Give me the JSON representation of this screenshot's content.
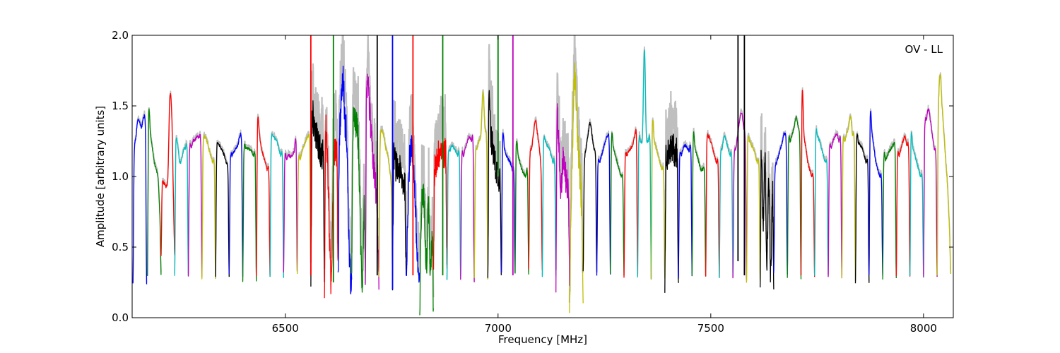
{
  "chart_data": {
    "type": "line",
    "title": "",
    "annotation": "OV - LL",
    "xlabel": "Frequency [MHz]",
    "ylabel": "Amplitude [arbitrary units]",
    "xlim": [
      6140,
      8070
    ],
    "ylim": [
      0,
      2.0
    ],
    "xticks": [
      6500,
      7000,
      7500,
      8000
    ],
    "xtick_labels": [
      "6500",
      "7000",
      "7500",
      "8000"
    ],
    "yticks": [
      0.0,
      0.5,
      1.0,
      1.5,
      2.0
    ],
    "ytick_labels": [
      "0.0",
      "0.5",
      "1.0",
      "1.5",
      "2.0"
    ],
    "grid": false,
    "background_trace_color": "#bfbfbf",
    "color_cycle": [
      "#0000ff",
      "#008000",
      "#ff0000",
      "#00bfbf",
      "#bf00bf",
      "#bfbf00",
      "#000000"
    ],
    "channel_width_mhz": 32,
    "series": [
      {
        "start": 6142,
        "color": "#0000ff",
        "values": [
          0.24,
          1.12,
          1.28,
          1.4,
          1.38,
          1.35,
          1.42,
          1.3,
          0.24
        ],
        "noisy": false
      },
      {
        "start": 6176,
        "color": "#008000",
        "values": [
          0.3,
          1.42,
          1.3,
          1.2,
          1.1,
          1.05,
          0.98,
          0.7,
          0.3
        ],
        "noisy": false
      },
      {
        "start": 6208,
        "color": "#ff0000",
        "values": [
          0.44,
          0.92,
          0.95,
          0.93,
          1.0,
          1.55,
          1.45,
          0.8,
          0.45
        ],
        "noisy": false
      },
      {
        "start": 6240,
        "color": "#00bfbf",
        "values": [
          0.3,
          1.2,
          1.22,
          1.1,
          1.12,
          1.18,
          1.2,
          1.15,
          0.3
        ],
        "noisy": false
      },
      {
        "start": 6272,
        "color": "#bf00bf",
        "values": [
          0.29,
          1.15,
          1.2,
          1.25,
          1.26,
          1.28,
          1.27,
          1.2,
          0.29
        ],
        "noisy": false
      },
      {
        "start": 6304,
        "color": "#bfbf00",
        "values": [
          0.28,
          1.18,
          1.28,
          1.25,
          1.2,
          1.15,
          1.1,
          1.05,
          0.28
        ],
        "noisy": false
      },
      {
        "start": 6336,
        "color": "#000000",
        "values": [
          0.29,
          1.15,
          1.23,
          1.2,
          1.18,
          1.15,
          1.1,
          1.0,
          0.29
        ],
        "noisy": false
      },
      {
        "start": 6368,
        "color": "#0000ff",
        "values": [
          0.3,
          1.08,
          1.15,
          1.18,
          1.2,
          1.22,
          1.28,
          1.2,
          0.3
        ],
        "noisy": false
      },
      {
        "start": 6400,
        "color": "#008000",
        "values": [
          0.26,
          1.15,
          1.2,
          1.2,
          1.19,
          1.18,
          1.15,
          1.1,
          0.26
        ],
        "noisy": false
      },
      {
        "start": 6432,
        "color": "#ff0000",
        "values": [
          0.3,
          1.35,
          1.3,
          1.2,
          1.15,
          1.1,
          1.05,
          1.0,
          0.3
        ],
        "noisy": false
      },
      {
        "start": 6464,
        "color": "#00bfbf",
        "values": [
          0.28,
          1.2,
          1.28,
          1.27,
          1.25,
          1.2,
          1.15,
          1.1,
          0.28
        ],
        "noisy": false
      },
      {
        "start": 6496,
        "color": "#bf00bf",
        "values": [
          0.32,
          1.1,
          1.12,
          1.15,
          1.14,
          1.15,
          1.18,
          1.2,
          0.32
        ],
        "noisy": false
      },
      {
        "start": 6528,
        "color": "#bfbf00",
        "values": [
          0.3,
          1.08,
          1.12,
          1.18,
          1.22,
          1.25,
          1.28,
          1.2,
          0.3
        ],
        "noisy": false
      },
      {
        "start": 6560,
        "color": "#000000",
        "values": [
          0.28,
          1.35,
          1.38,
          1.3,
          1.25,
          1.2,
          1.15,
          1.1,
          0.28
        ],
        "noisy": true
      },
      {
        "start": 6592,
        "color": "#ff0000",
        "values": [
          0.22,
          1.3,
          1.1,
          0.6,
          0.25,
          1.05,
          1.2,
          1.1,
          0.4
        ],
        "noisy": true
      },
      {
        "start": 6624,
        "color": "#0000ff",
        "values": [
          0.3,
          1.2,
          1.5,
          1.7,
          1.4,
          1.25,
          0.6,
          0.28,
          0.25
        ],
        "noisy": true
      },
      {
        "start": 6656,
        "color": "#008000",
        "values": [
          0.21,
          1.3,
          1.38,
          1.35,
          1.2,
          0.6,
          0.25,
          0.8,
          0.3
        ],
        "noisy": true
      },
      {
        "start": 6688,
        "color": "#bf00bf",
        "values": [
          0.23,
          1.45,
          1.6,
          1.4,
          1.2,
          1.05,
          0.9,
          0.6,
          0.23
        ],
        "noisy": true
      },
      {
        "start": 6720,
        "color": "#bfbf00",
        "values": [
          0.28,
          1.2,
          1.32,
          1.28,
          1.2,
          1.15,
          1.05,
          0.9,
          0.28
        ],
        "noisy": false
      },
      {
        "start": 6752,
        "color": "#000000",
        "values": [
          0.28,
          1.1,
          1.08,
          1.05,
          1.05,
          1.0,
          0.95,
          0.9,
          0.28
        ],
        "noisy": true
      },
      {
        "start": 6784,
        "color": "#0000ff",
        "values": [
          0.2,
          0.6,
          1.05,
          1.2,
          1.1,
          0.9,
          0.5,
          0.3,
          0.2
        ],
        "noisy": true
      },
      {
        "start": 6816,
        "color": "#008000",
        "values": [
          0.03,
          0.6,
          0.9,
          0.7,
          0.4,
          0.8,
          0.3,
          0.6,
          0.02
        ],
        "noisy": true
      },
      {
        "start": 6848,
        "color": "#ff0000",
        "values": [
          0.3,
          1.0,
          1.1,
          1.15,
          1.18,
          1.2,
          1.15,
          1.1,
          0.3
        ],
        "noisy": true
      },
      {
        "start": 6880,
        "color": "#00bfbf",
        "values": [
          0.27,
          1.1,
          1.18,
          1.22,
          1.2,
          1.18,
          1.15,
          1.1,
          0.27
        ],
        "noisy": false
      },
      {
        "start": 6912,
        "color": "#bf00bf",
        "values": [
          0.26,
          1.1,
          1.15,
          1.2,
          1.25,
          1.28,
          1.25,
          1.2,
          0.26
        ],
        "noisy": false
      },
      {
        "start": 6944,
        "color": "#bfbf00",
        "values": [
          0.28,
          1.1,
          1.2,
          1.25,
          1.3,
          1.6,
          1.35,
          1.2,
          0.28
        ],
        "noisy": false
      },
      {
        "start": 6976,
        "color": "#000000",
        "values": [
          0.32,
          1.6,
          1.3,
          1.2,
          1.1,
          1.05,
          1.0,
          0.95,
          0.32
        ],
        "noisy": true
      },
      {
        "start": 7008,
        "color": "#0000ff",
        "values": [
          0.31,
          1.25,
          1.2,
          1.15,
          1.12,
          1.1,
          1.05,
          1.0,
          0.31
        ],
        "noisy": false
      },
      {
        "start": 7040,
        "color": "#008000",
        "values": [
          0.31,
          1.2,
          1.15,
          1.1,
          1.05,
          1.02,
          1.0,
          1.0,
          0.31
        ],
        "noisy": false
      },
      {
        "start": 7072,
        "color": "#ff0000",
        "values": [
          0.34,
          1.1,
          1.2,
          1.3,
          1.4,
          1.3,
          1.2,
          1.0,
          0.34
        ],
        "noisy": false
      },
      {
        "start": 7104,
        "color": "#00bfbf",
        "values": [
          0.29,
          1.2,
          1.25,
          1.22,
          1.2,
          1.15,
          1.1,
          1.05,
          0.29
        ],
        "noisy": false
      },
      {
        "start": 7136,
        "color": "#bf00bf",
        "values": [
          0.27,
          1.4,
          1.2,
          0.9,
          1.1,
          1.05,
          0.95,
          0.9,
          0.27
        ],
        "noisy": true
      },
      {
        "start": 7168,
        "color": "#bfbf00",
        "values": [
          0.12,
          0.6,
          1.2,
          1.7,
          1.5,
          1.2,
          1.0,
          0.7,
          0.2
        ],
        "noisy": true
      },
      {
        "start": 7200,
        "color": "#000000",
        "values": [
          0.32,
          1.05,
          1.2,
          1.3,
          1.38,
          1.3,
          1.2,
          1.1,
          0.32
        ],
        "noisy": false
      },
      {
        "start": 7232,
        "color": "#0000ff",
        "values": [
          0.3,
          1.05,
          1.1,
          1.15,
          1.2,
          1.25,
          1.28,
          1.2,
          0.3
        ],
        "noisy": false
      },
      {
        "start": 7264,
        "color": "#008000",
        "values": [
          0.3,
          1.25,
          1.2,
          1.15,
          1.1,
          1.05,
          1.0,
          0.95,
          0.3
        ],
        "noisy": false
      },
      {
        "start": 7296,
        "color": "#ff0000",
        "values": [
          0.29,
          1.1,
          1.15,
          1.18,
          1.2,
          1.22,
          1.28,
          1.25,
          0.29
        ],
        "noisy": false
      },
      {
        "start": 7328,
        "color": "#00bfbf",
        "values": [
          0.28,
          1.2,
          1.25,
          1.3,
          1.9,
          1.3,
          1.25,
          1.2,
          0.28
        ],
        "noisy": false
      },
      {
        "start": 7360,
        "color": "#bfbf00",
        "values": [
          0.28,
          1.35,
          1.25,
          1.2,
          1.15,
          1.1,
          1.05,
          1.0,
          0.28
        ],
        "noisy": false
      },
      {
        "start": 7392,
        "color": "#000000",
        "values": [
          0.28,
          1.1,
          1.15,
          1.2,
          1.18,
          1.2,
          1.15,
          1.1,
          0.28
        ],
        "noisy": true
      },
      {
        "start": 7424,
        "color": "#0000ff",
        "values": [
          0.29,
          1.1,
          1.15,
          1.2,
          1.22,
          1.2,
          1.18,
          1.15,
          0.29
        ],
        "noisy": false
      },
      {
        "start": 7456,
        "color": "#008000",
        "values": [
          0.3,
          1.25,
          1.2,
          1.15,
          1.1,
          1.05,
          1.05,
          1.0,
          0.3
        ],
        "noisy": false
      },
      {
        "start": 7488,
        "color": "#ff0000",
        "values": [
          0.29,
          1.2,
          1.28,
          1.25,
          1.2,
          1.15,
          1.1,
          1.05,
          0.29
        ],
        "noisy": false
      },
      {
        "start": 7520,
        "color": "#00bfbf",
        "values": [
          0.29,
          1.1,
          1.2,
          1.28,
          1.25,
          1.2,
          1.15,
          1.1,
          0.29
        ],
        "noisy": false
      },
      {
        "start": 7552,
        "color": "#bf00bf",
        "values": [
          0.27,
          1.1,
          1.2,
          1.3,
          1.4,
          1.45,
          1.35,
          1.2,
          0.27
        ],
        "noisy": false
      },
      {
        "start": 7584,
        "color": "#bfbf00",
        "values": [
          0.25,
          1.2,
          1.25,
          1.22,
          1.2,
          1.15,
          1.1,
          1.05,
          0.25
        ],
        "noisy": false
      },
      {
        "start": 7616,
        "color": "#000000",
        "values": [
          0.22,
          1.2,
          0.7,
          1.1,
          0.4,
          1.0,
          0.3,
          0.9,
          0.22
        ],
        "noisy": true
      },
      {
        "start": 7648,
        "color": "#0000ff",
        "values": [
          0.31,
          1.0,
          1.1,
          1.15,
          1.2,
          1.25,
          1.3,
          1.2,
          0.31
        ],
        "noisy": false
      },
      {
        "start": 7680,
        "color": "#008000",
        "values": [
          0.28,
          1.2,
          1.25,
          1.3,
          1.35,
          1.42,
          1.35,
          1.2,
          0.28
        ],
        "noisy": false
      },
      {
        "start": 7712,
        "color": "#ff0000",
        "values": [
          0.29,
          1.56,
          1.3,
          1.2,
          1.1,
          1.05,
          1.0,
          0.95,
          0.29
        ],
        "noisy": false
      },
      {
        "start": 7744,
        "color": "#00bfbf",
        "values": [
          0.3,
          1.25,
          1.28,
          1.25,
          1.2,
          1.15,
          1.1,
          1.05,
          0.3
        ],
        "noisy": false
      },
      {
        "start": 7776,
        "color": "#bf00bf",
        "values": [
          0.29,
          1.15,
          1.2,
          1.25,
          1.28,
          1.3,
          1.25,
          1.2,
          0.29
        ],
        "noisy": false
      },
      {
        "start": 7808,
        "color": "#bfbf00",
        "values": [
          0.28,
          1.2,
          1.25,
          1.3,
          1.35,
          1.42,
          1.3,
          1.2,
          0.28
        ],
        "noisy": false
      },
      {
        "start": 7840,
        "color": "#000000",
        "values": [
          0.25,
          1.22,
          1.24,
          1.22,
          1.2,
          1.15,
          1.1,
          1.05,
          0.25
        ],
        "noisy": false
      },
      {
        "start": 7872,
        "color": "#0000ff",
        "values": [
          0.3,
          1.4,
          1.3,
          1.2,
          1.1,
          1.05,
          1.0,
          0.95,
          0.3
        ],
        "noisy": false
      },
      {
        "start": 7904,
        "color": "#008000",
        "values": [
          0.28,
          1.1,
          1.12,
          1.15,
          1.18,
          1.2,
          1.22,
          1.15,
          0.28
        ],
        "noisy": false
      },
      {
        "start": 7936,
        "color": "#ff0000",
        "values": [
          0.29,
          1.1,
          1.15,
          1.2,
          1.25,
          1.28,
          1.22,
          1.15,
          0.29
        ],
        "noisy": false
      },
      {
        "start": 7968,
        "color": "#00bfbf",
        "values": [
          0.29,
          1.25,
          1.2,
          1.15,
          1.1,
          1.05,
          1.0,
          0.95,
          0.29
        ],
        "noisy": false
      },
      {
        "start": 8000,
        "color": "#bf00bf",
        "values": [
          0.28,
          1.3,
          1.4,
          1.48,
          1.4,
          1.3,
          1.2,
          1.1,
          0.28
        ],
        "noisy": false
      },
      {
        "start": 8032,
        "color": "#bfbf00",
        "values": [
          0.3,
          1.4,
          1.72,
          1.5,
          1.3,
          1.1,
          0.9,
          0.6,
          0.3
        ],
        "noisy": false
      }
    ],
    "spikes": [
      {
        "x": 6560,
        "ymin": 0.3,
        "ymax": 2.0,
        "color": "#ff0000"
      },
      {
        "x": 6613,
        "ymin": 0.25,
        "ymax": 2.0,
        "color": "#008000"
      },
      {
        "x": 6716,
        "ymin": 0.3,
        "ymax": 2.0,
        "color": "#000000"
      },
      {
        "x": 6752,
        "ymin": 0.2,
        "ymax": 2.0,
        "color": "#0000ff"
      },
      {
        "x": 6800,
        "ymin": 0.3,
        "ymax": 2.0,
        "color": "#ff0000"
      },
      {
        "x": 6870,
        "ymin": 0.3,
        "ymax": 2.0,
        "color": "#008000"
      },
      {
        "x": 7000,
        "ymin": 1.0,
        "ymax": 2.0,
        "color": "#008000"
      },
      {
        "x": 7035,
        "ymin": 0.3,
        "ymax": 2.0,
        "color": "#bf00bf"
      },
      {
        "x": 7564,
        "ymin": 0.4,
        "ymax": 2.0,
        "color": "#000000"
      },
      {
        "x": 7579,
        "ymin": 0.3,
        "ymax": 2.0,
        "color": "#000000"
      }
    ]
  }
}
